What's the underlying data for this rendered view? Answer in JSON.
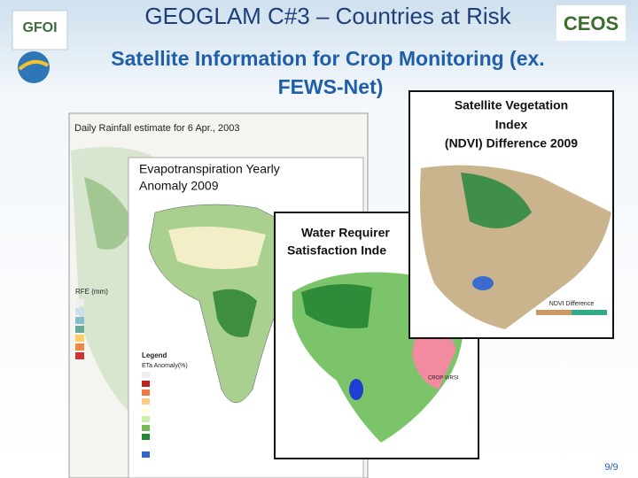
{
  "header": {
    "title": "GEOGLAM C#3 – Countries at Risk",
    "subtitle_lines": [
      "Satellite Information for Crop Monitoring  (ex.",
      "FEWS-Net)"
    ],
    "logos": [
      "GFOI",
      "CEOS"
    ]
  },
  "panels": [
    {
      "label_lines": [
        "Daily Rainfall estimate for 6 Apr., 2003"
      ],
      "legend_title": "RFE (mm)"
    },
    {
      "label_lines": [
        "Evapotranspiration Yearly",
        "Anomaly 2009"
      ],
      "legend_title": "ETa Anomaly(%)",
      "legend_heading": "Legend"
    },
    {
      "label_lines": [
        "Water Requirer",
        "Satisfaction Inde"
      ],
      "legend_title": "CROP WRSI"
    },
    {
      "label_lines": [
        "Satellite Vegetation",
        "Index",
        "(NDVI) Difference 2009"
      ],
      "legend_title": "NDVI Difference"
    }
  ],
  "footer": {
    "page": "9/9"
  }
}
